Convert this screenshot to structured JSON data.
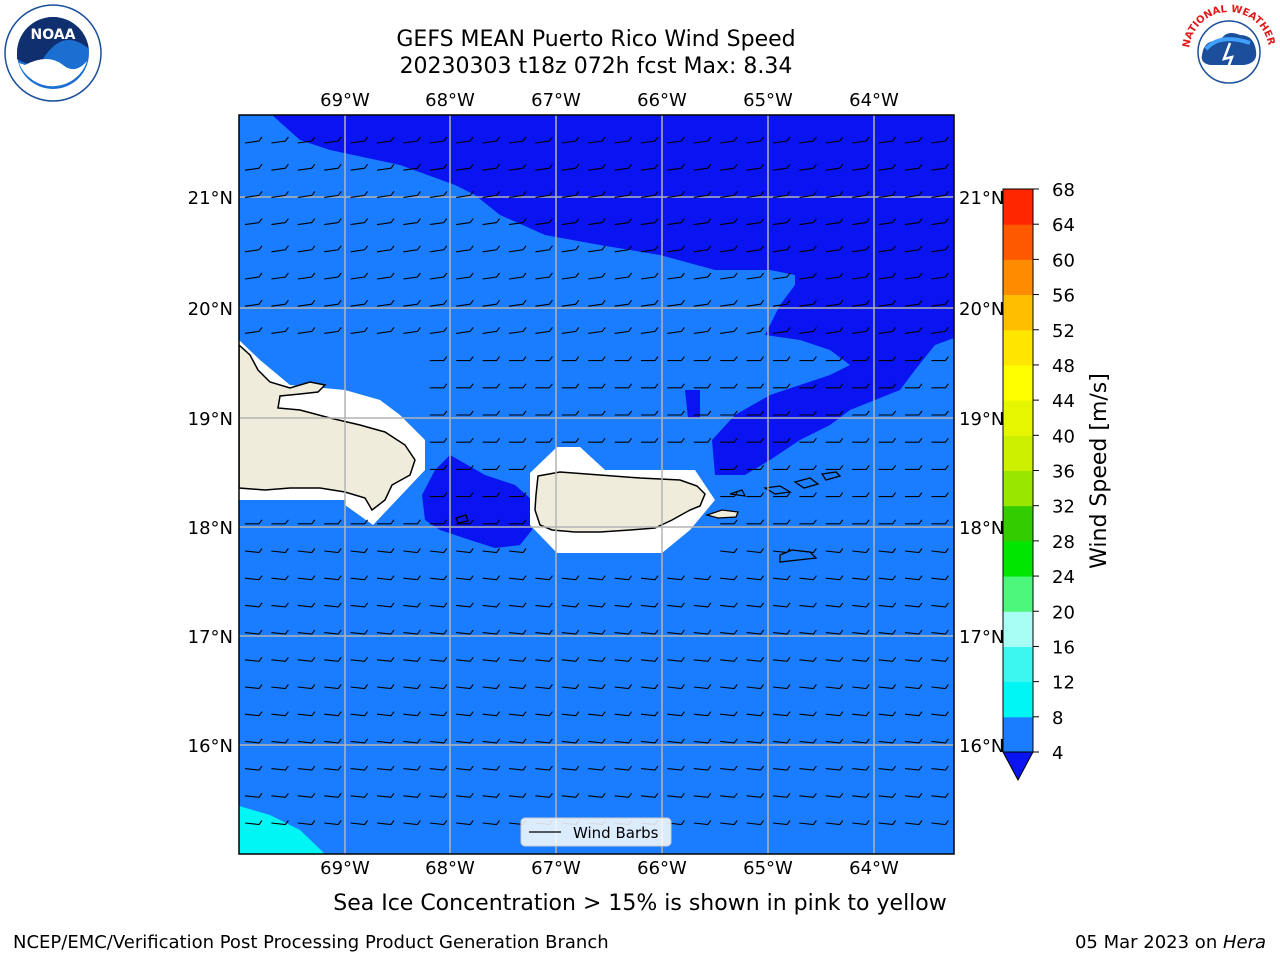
{
  "title": {
    "line1": "GEFS MEAN Puerto Rico Wind Speed",
    "line2": "20230303 t18z 072h fcst   Max: 8.34"
  },
  "map": {
    "lon_labels": [
      "69°W",
      "68°W",
      "67°W",
      "66°W",
      "65°W",
      "64°W"
    ],
    "lat_labels": [
      "21°N",
      "20°N",
      "19°N",
      "18°N",
      "17°N",
      "16°N"
    ],
    "lon_range": [
      -70.0,
      -63.25
    ],
    "lat_range": [
      15.0,
      21.75
    ],
    "legend_label": "Wind Barbs",
    "wind_direction": "from the east (easterly trades)",
    "fill_colors": {
      "4-8": "#1a7dff",
      "below-4": "#0a14f0",
      "8-12": "#00f5f5",
      "land": "#efecdc",
      "masked": "#ffffff"
    }
  },
  "colorbar": {
    "label": "Wind Speed [m/s]",
    "ticks": [
      "68",
      "64",
      "60",
      "56",
      "52",
      "48",
      "44",
      "40",
      "36",
      "32",
      "28",
      "24",
      "20",
      "16",
      "12",
      "8",
      "4"
    ],
    "colors": [
      "#0a14f0",
      "#1a7dff",
      "#00f5f5",
      "#3cf7f0",
      "#a8fdf5",
      "#4df77c",
      "#00e600",
      "#33cc00",
      "#99e600",
      "#ccf000",
      "#e6f500",
      "#ffff00",
      "#ffe600",
      "#ffbf00",
      "#ff8c00",
      "#ff5900",
      "#ff2600",
      "#ff0000"
    ]
  },
  "sea_ice_note": "Sea Ice Concentration > 15% is shown in pink to yellow",
  "footer": {
    "left": "NCEP/EMC/Verification Post Processing Product Generation Branch",
    "right_date": "05 Mar 2023 on ",
    "right_machine": "Hera"
  },
  "logos": {
    "left": "NOAA",
    "right": "NATIONAL WEATHER SERVICE"
  }
}
